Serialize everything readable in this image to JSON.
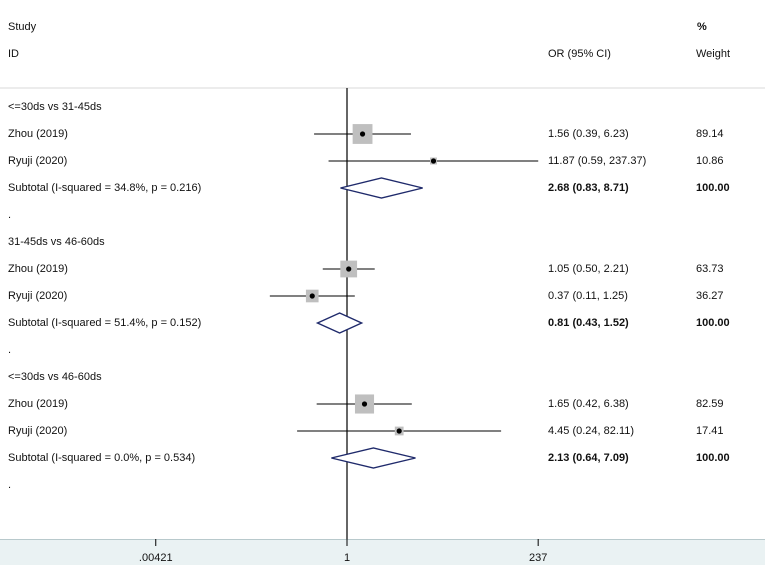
{
  "header": {
    "study_line1": "Study",
    "study_line2": "ID",
    "or_label": "OR (95% CI)",
    "weight_line1": "%",
    "weight_line2": "Weight"
  },
  "chart_data": {
    "type": "forest",
    "scale": "log",
    "null_value": 1,
    "x_ticks": [
      0.00421,
      1,
      237
    ],
    "x_tick_labels": [
      ".00421",
      "1",
      "237"
    ],
    "groups": [
      {
        "title": "<=30ds vs 31-45ds",
        "studies": [
          {
            "label": "Zhou  (2019)",
            "or": 1.56,
            "lo": 0.39,
            "hi": 6.23,
            "ci_text": "1.56 (0.39, 6.23)",
            "weight": 89.14,
            "weight_text": "89.14"
          },
          {
            "label": "Ryuji  (2020)",
            "or": 11.87,
            "lo": 0.59,
            "hi": 237.37,
            "ci_text": "11.87 (0.59, 237.37)",
            "weight": 10.86,
            "weight_text": "10.86"
          }
        ],
        "subtotal": {
          "label": "Subtotal  (I-squared = 34.8%, p = 0.216)",
          "or": 2.68,
          "lo": 0.83,
          "hi": 8.71,
          "ci_text": "2.68 (0.83, 8.71)",
          "weight_text": "100.00"
        }
      },
      {
        "title": "31-45ds vs 46-60ds",
        "studies": [
          {
            "label": "Zhou  (2019)",
            "or": 1.05,
            "lo": 0.5,
            "hi": 2.21,
            "ci_text": "1.05 (0.50, 2.21)",
            "weight": 63.73,
            "weight_text": "63.73"
          },
          {
            "label": "Ryuji  (2020)",
            "or": 0.37,
            "lo": 0.11,
            "hi": 1.25,
            "ci_text": "0.37 (0.11, 1.25)",
            "weight": 36.27,
            "weight_text": "36.27"
          }
        ],
        "subtotal": {
          "label": "Subtotal  (I-squared = 51.4%, p = 0.152)",
          "or": 0.81,
          "lo": 0.43,
          "hi": 1.52,
          "ci_text": "0.81 (0.43, 1.52)",
          "weight_text": "100.00"
        }
      },
      {
        "title": "<=30ds vs 46-60ds",
        "studies": [
          {
            "label": "Zhou  (2019)",
            "or": 1.65,
            "lo": 0.42,
            "hi": 6.38,
            "ci_text": "1.65 (0.42, 6.38)",
            "weight": 82.59,
            "weight_text": "82.59"
          },
          {
            "label": "Ryuji  (2020)",
            "or": 4.45,
            "lo": 0.24,
            "hi": 82.11,
            "ci_text": "4.45 (0.24, 82.11)",
            "weight": 17.41,
            "weight_text": "17.41"
          }
        ],
        "subtotal": {
          "label": "Subtotal  (I-squared = 0.0%, p = 0.534)",
          "or": 2.13,
          "lo": 0.64,
          "hi": 7.09,
          "ci_text": "2.13 (0.64, 7.09)",
          "weight_text": "100.00"
        }
      }
    ],
    "separator_text": ".",
    "colors": {
      "box": "#bfbfbf",
      "diamond": "#1f2a6b",
      "line": "#000000"
    }
  }
}
